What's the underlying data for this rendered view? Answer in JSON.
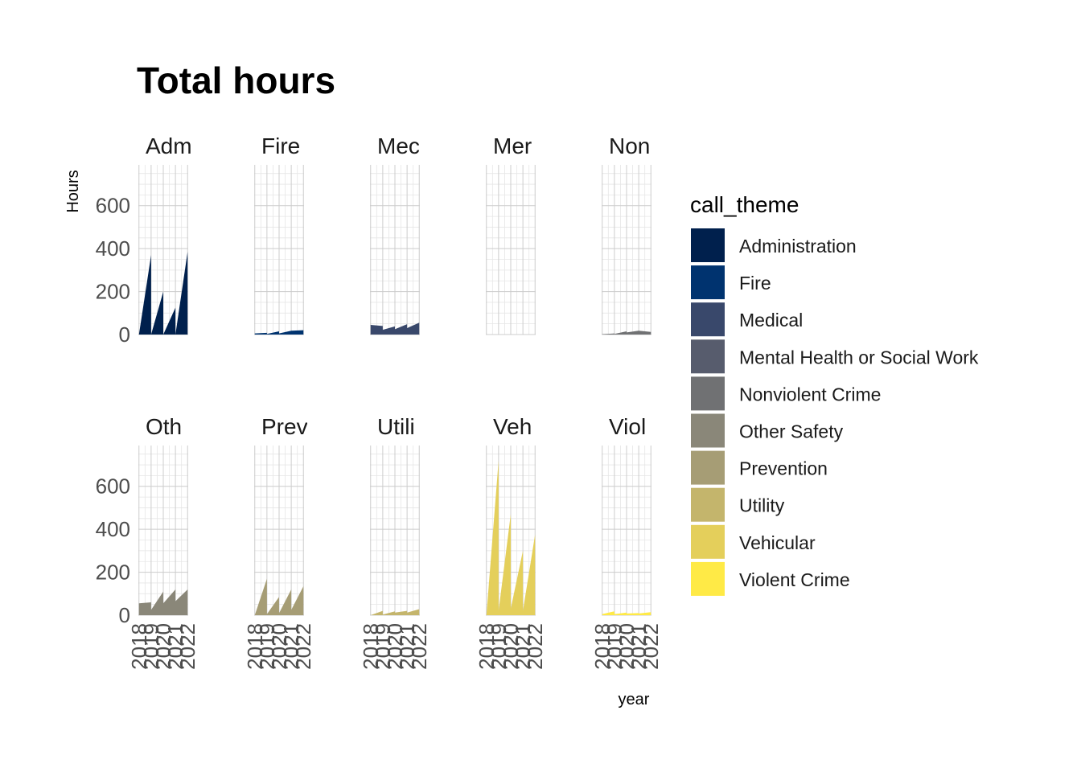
{
  "chart_data": {
    "type": "area",
    "title": "Total hours",
    "xlabel": "year",
    "ylabel": "Hours",
    "ylim": [
      0,
      790
    ],
    "yticks": [
      0,
      200,
      400,
      600
    ],
    "xticks": [
      "2018",
      "2019",
      "2020",
      "2021",
      "2022"
    ],
    "legend": {
      "title": "call_theme",
      "position": "right"
    },
    "facet_layout": {
      "rows": 2,
      "cols": 5
    },
    "series": [
      {
        "name": "Administration",
        "strip": "Adm",
        "color": "#00204D",
        "points": [
          [
            2018,
            0
          ],
          [
            2019,
            370
          ],
          [
            2019,
            0
          ],
          [
            2020,
            200
          ],
          [
            2020,
            0
          ],
          [
            2021,
            125
          ],
          [
            2021,
            0
          ],
          [
            2022,
            385
          ]
        ]
      },
      {
        "name": "Fire",
        "strip": "Fire",
        "color": "#00336F",
        "points": [
          [
            2018,
            5
          ],
          [
            2019,
            8
          ],
          [
            2019,
            3
          ],
          [
            2020,
            15
          ],
          [
            2020,
            5
          ],
          [
            2021,
            18
          ],
          [
            2022,
            20
          ]
        ]
      },
      {
        "name": "Medical",
        "strip": "Mec",
        "color": "#39486B",
        "points": [
          [
            2018,
            45
          ],
          [
            2019,
            40
          ],
          [
            2019,
            22
          ],
          [
            2020,
            38
          ],
          [
            2020,
            25
          ],
          [
            2021,
            48
          ],
          [
            2021,
            30
          ],
          [
            2022,
            55
          ]
        ]
      },
      {
        "name": "Mental Health or Social Work",
        "strip": "Mer",
        "color": "#575C6D",
        "points": [
          [
            2018,
            0
          ],
          [
            2022,
            0
          ]
        ]
      },
      {
        "name": "Nonviolent Crime",
        "strip": "Non",
        "color": "#707173",
        "points": [
          [
            2018,
            2
          ],
          [
            2019,
            5
          ],
          [
            2019,
            3
          ],
          [
            2020,
            15
          ],
          [
            2020,
            10
          ],
          [
            2021,
            18
          ],
          [
            2022,
            12
          ]
        ]
      },
      {
        "name": "Other Safety",
        "strip": "Oth",
        "color": "#8A8779",
        "points": [
          [
            2018,
            55
          ],
          [
            2019,
            60
          ],
          [
            2019,
            25
          ],
          [
            2020,
            110
          ],
          [
            2020,
            55
          ],
          [
            2021,
            120
          ],
          [
            2021,
            65
          ],
          [
            2022,
            120
          ]
        ]
      },
      {
        "name": "Prevention",
        "strip": "Prev",
        "color": "#A69D75",
        "points": [
          [
            2018,
            0
          ],
          [
            2019,
            170
          ],
          [
            2019,
            5
          ],
          [
            2020,
            85
          ],
          [
            2020,
            10
          ],
          [
            2021,
            120
          ],
          [
            2021,
            25
          ],
          [
            2022,
            135
          ]
        ]
      },
      {
        "name": "Utility",
        "strip": "Utili",
        "color": "#C4B56C",
        "points": [
          [
            2018,
            0
          ],
          [
            2019,
            20
          ],
          [
            2019,
            3
          ],
          [
            2020,
            18
          ],
          [
            2020,
            12
          ],
          [
            2021,
            20
          ],
          [
            2021,
            12
          ],
          [
            2022,
            28
          ]
        ]
      },
      {
        "name": "Vehicular",
        "strip": "Veh",
        "color": "#E4CF5B",
        "points": [
          [
            2018,
            0
          ],
          [
            2019,
            720
          ],
          [
            2019,
            20
          ],
          [
            2020,
            470
          ],
          [
            2020,
            30
          ],
          [
            2021,
            300
          ],
          [
            2021,
            20
          ],
          [
            2022,
            375
          ]
        ]
      },
      {
        "name": "Violent Crime",
        "strip": "Viol",
        "color": "#FFEA46",
        "points": [
          [
            2018,
            5
          ],
          [
            2019,
            18
          ],
          [
            2019,
            5
          ],
          [
            2020,
            12
          ],
          [
            2020,
            8
          ],
          [
            2021,
            10
          ],
          [
            2021,
            8
          ],
          [
            2022,
            14
          ]
        ]
      }
    ]
  }
}
